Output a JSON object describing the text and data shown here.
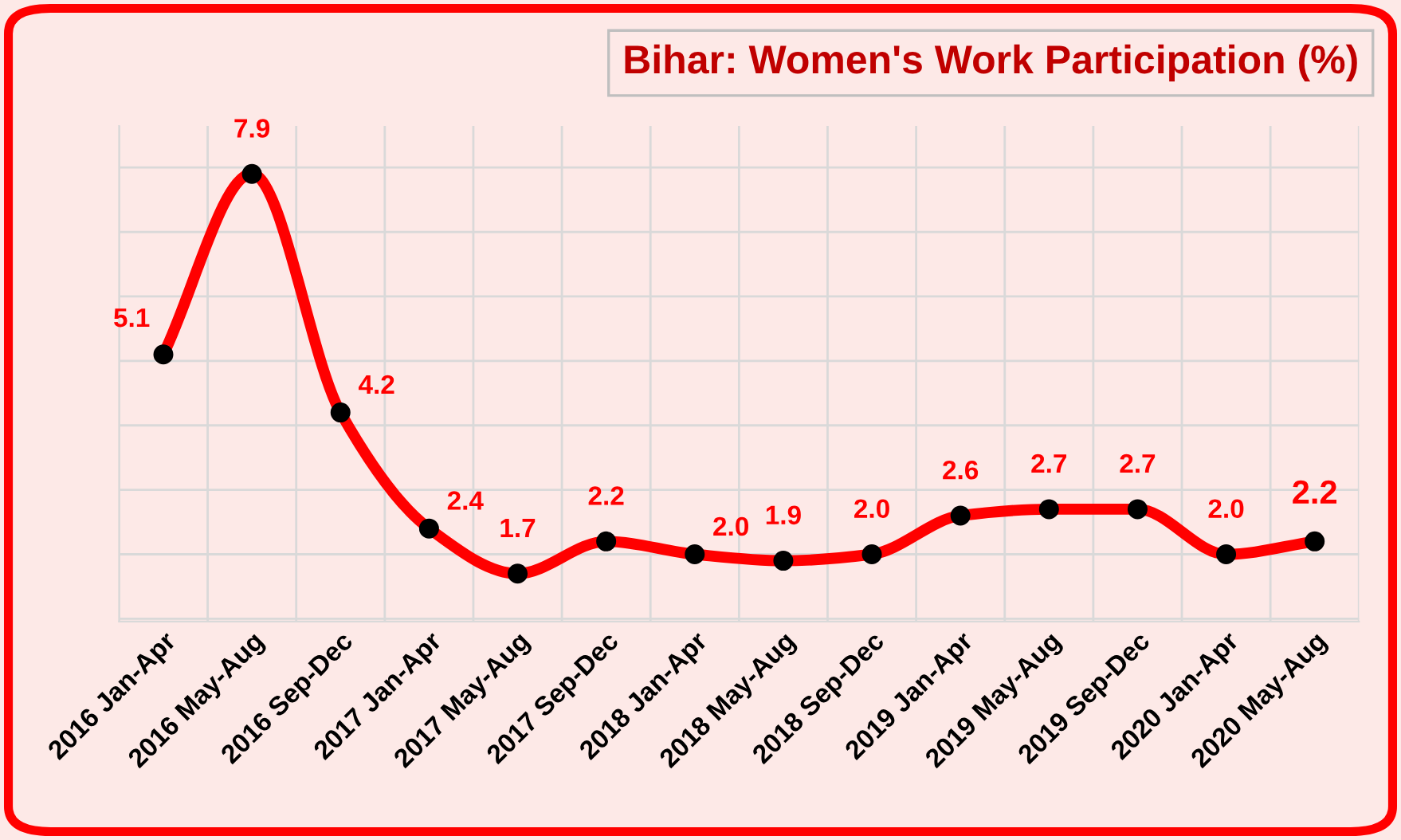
{
  "chart_data": {
    "type": "line",
    "title": "Bihar: Women's Work Participation (%)",
    "categories": [
      "2016 Jan-Apr",
      "2016 May-Aug",
      "2016 Sep-Dec",
      "2017 Jan-Apr",
      "2017 May-Aug",
      "2017 Sep-Dec",
      "2018 Jan-Apr",
      "2018 May-Aug",
      "2018 Sep-Dec",
      "2019 Jan-Apr",
      "2019 May-Aug",
      "2019 Sep-Dec",
      "2020 Jan-Apr",
      "2020 May-Aug"
    ],
    "series": [
      {
        "color": "#ff0000",
        "values": [
          5.1,
          7.9,
          4.2,
          2.4,
          1.7,
          2.2,
          2.0,
          1.9,
          2.0,
          2.6,
          2.7,
          2.7,
          2.0,
          2.2
        ],
        "value_labels": [
          "5.1",
          "7.9",
          "4.2",
          "2.4",
          "1.7",
          "2.2",
          "2.0",
          "1.9",
          "2.0",
          "2.6",
          "2.7",
          "2.7",
          "2.0",
          "2.2"
        ]
      }
    ],
    "grid": true,
    "marker": "circle",
    "line_style": "solid"
  }
}
